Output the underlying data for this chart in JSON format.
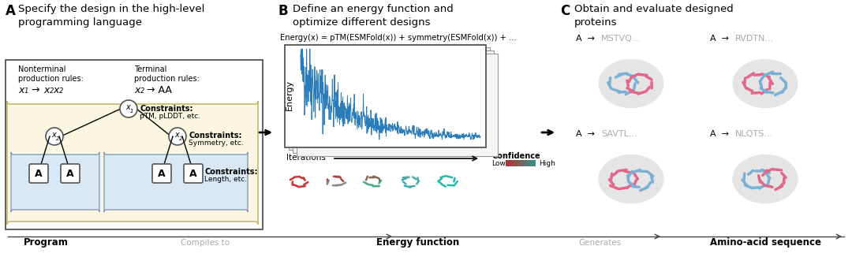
{
  "label_A": "A",
  "label_B": "B",
  "label_C": "C",
  "title_A_text": "Specify the design in the high-level\nprogramming language",
  "title_B_text": "Define an energy function and\noptimize different designs",
  "title_C_text": "Obtain and evaluate designed\nproteins",
  "energy_eq": "Energy(x) = pTM(ESMFold(x)) + symmetry(ESMFold(x)) + ...",
  "nonterminal_label": "Nonterminal\nproduction rules:",
  "terminal_label": "Terminal\nproduction rules:",
  "constraints1_bold": "Constraints:",
  "constraints1_norm": "pTM, pLDDT, etc.",
  "constraints2_bold": "Constraints:",
  "constraints2_norm": "Symmetry, etc.",
  "constraints3_bold": "Constraints:",
  "constraints3_norm": "Length, etc.",
  "iter_label": "Iterations",
  "confidence_label": "Confidence",
  "conf_low": "Low",
  "conf_high": "High",
  "bottom_label1": "Program",
  "bottom_label2": "Compiles to",
  "bottom_label3": "Energy function",
  "bottom_label4": "Generates",
  "bottom_label5": "Amino-acid sequence",
  "energy_ylabel": "Energy",
  "blue_color": "#7BAFD4",
  "pink_color": "#E0688A",
  "teal_color": "#3A9B96",
  "bg_color": "#FFFFFF",
  "yellow_box_bg": "#FAF6E0",
  "yellow_box_edge": "#C8B870",
  "blue_box_bg": "#D8E8F5",
  "blue_box_edge": "#8899BB",
  "gray_text": "#AAAAAA",
  "arrow_color": "#222222",
  "blue_line": "#2B7CBB",
  "node_edge": "#555555",
  "box_edge": "#555555",
  "prot_colors": [
    "#CC3333",
    "#AA5555",
    "#667766",
    "#44AAAA",
    "#22BBAA"
  ]
}
